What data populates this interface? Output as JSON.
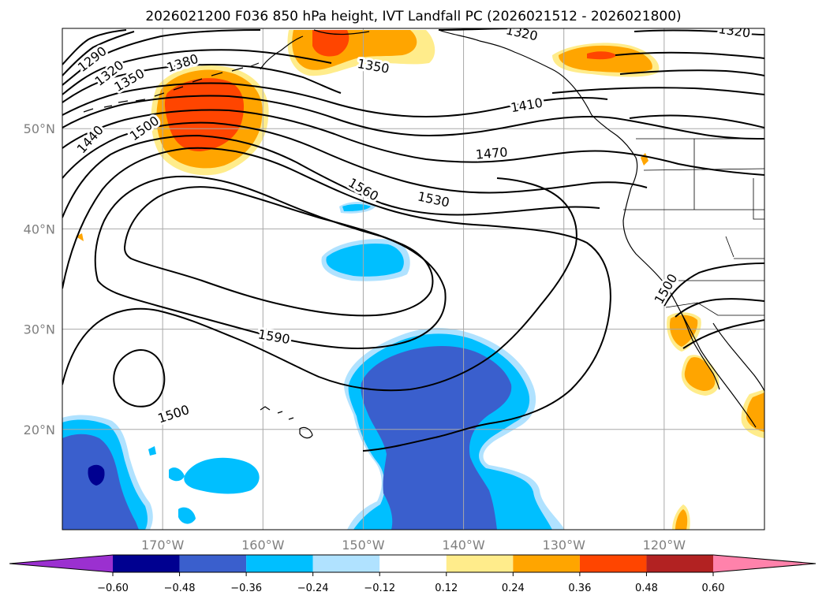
{
  "chart_data": {
    "type": "contour_map",
    "title": "2026021200 F036 850 hPa height, IVT Landfall PC (2026021512 - 2026021800)",
    "map_extent": {
      "lon": [
        -180,
        -110
      ],
      "lat": [
        10,
        60
      ]
    },
    "lon_ticks": [
      {
        "value": -170,
        "label": "170°W"
      },
      {
        "value": -160,
        "label": "160°W"
      },
      {
        "value": -150,
        "label": "150°W"
      },
      {
        "value": -140,
        "label": "140°W"
      },
      {
        "value": -130,
        "label": "130°W"
      },
      {
        "value": -120,
        "label": "120°W"
      }
    ],
    "lat_ticks": [
      {
        "value": 50,
        "label": "50°N"
      },
      {
        "value": 40,
        "label": "40°N"
      },
      {
        "value": 30,
        "label": "30°N"
      },
      {
        "value": 20,
        "label": "20°N"
      }
    ],
    "contour_labels": [
      {
        "text": "1290",
        "lon": -177,
        "lat": 56.9,
        "angle": -38
      },
      {
        "text": "1320",
        "lon": -175.3,
        "lat": 55.5,
        "angle": -38
      },
      {
        "text": "1350",
        "lon": -173.3,
        "lat": 54.8,
        "angle": -30
      },
      {
        "text": "1380",
        "lon": -168,
        "lat": 56.5,
        "angle": -18
      },
      {
        "text": "1440",
        "lon": -177.2,
        "lat": 48.9,
        "angle": -48
      },
      {
        "text": "1500",
        "lon": -171.8,
        "lat": 50,
        "angle": -35
      },
      {
        "text": "1350",
        "lon": -149,
        "lat": 56.2,
        "angle": 10
      },
      {
        "text": "1320",
        "lon": -134.2,
        "lat": 59.5,
        "angle": 12
      },
      {
        "text": "1320",
        "lon": -113,
        "lat": 59.7,
        "angle": 8
      },
      {
        "text": "1410",
        "lon": -133.7,
        "lat": 52.3,
        "angle": -10
      },
      {
        "text": "1470",
        "lon": -137.2,
        "lat": 47.5,
        "angle": -5
      },
      {
        "text": "1560",
        "lon": -150,
        "lat": 43.9,
        "angle": 30
      },
      {
        "text": "1530",
        "lon": -143,
        "lat": 42.9,
        "angle": 12
      },
      {
        "text": "1590",
        "lon": -158.9,
        "lat": 29.2,
        "angle": 10
      },
      {
        "text": "1500",
        "lon": -168.9,
        "lat": 21.5,
        "angle": -18
      },
      {
        "text": "1500",
        "lon": -119.8,
        "lat": 34,
        "angle": -60
      }
    ],
    "colorbar": {
      "levels": [
        -0.6,
        -0.48,
        -0.36,
        -0.24,
        -0.12,
        0.12,
        0.24,
        0.36,
        0.48,
        0.6
      ],
      "labels": [
        "−0.60",
        "−0.48",
        "−0.36",
        "−0.24",
        "−0.12",
        "0.12",
        "0.24",
        "0.36",
        "0.48",
        "0.60"
      ],
      "colors": [
        "#9b30d0",
        "#000090",
        "#3a5fcd",
        "#00bfff",
        "#b0e2ff",
        "#ffffff",
        "#ffec8b",
        "#ffa500",
        "#ff4500",
        "#b22222",
        "#ff82ab"
      ]
    }
  }
}
